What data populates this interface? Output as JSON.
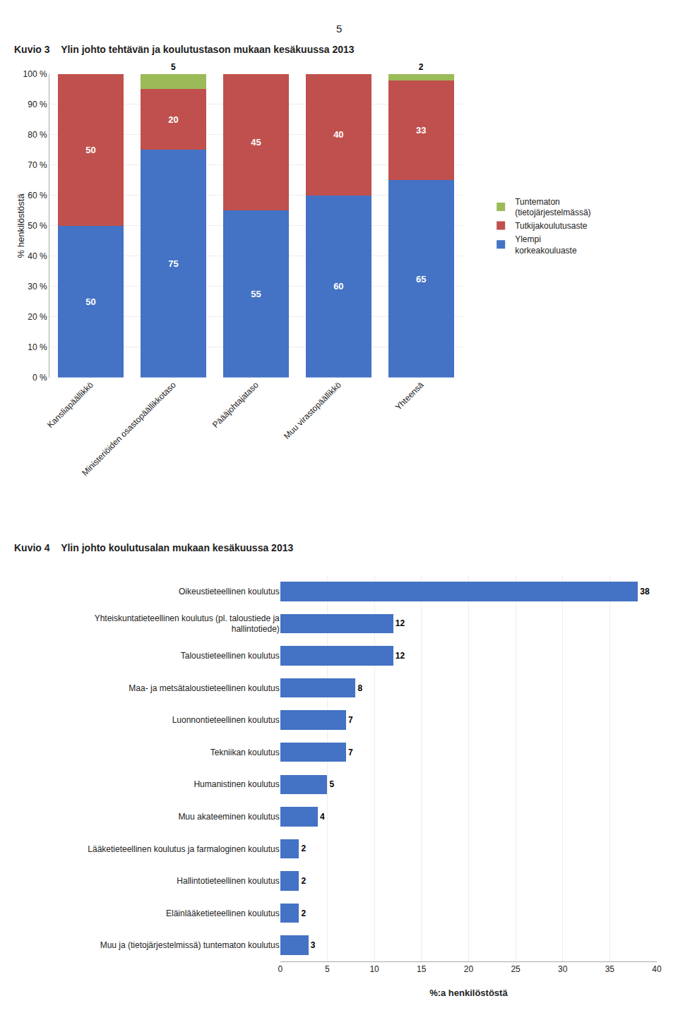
{
  "chart_data": [
    {
      "type": "bar",
      "title": "Kuvio 3",
      "subtitle": "Ylin johto tehtävän ja koulutustason mukaan kesäkuussa 2013",
      "annotations": [
        "5"
      ],
      "categories": [
        "Kansliapäällikkö",
        "Ministeriöiden osastopäällikkotaso",
        "Päääjohtajataso",
        "Muu virastopäällikkö",
        "Yhteensä"
      ],
      "series": [
        {
          "name": "Ylempi\nkorkeakouluaste",
          "color": "#4472C4",
          "values": [
            50,
            75,
            55,
            60,
            65
          ]
        },
        {
          "name": "Tutkijakoulutusaste",
          "color": "#C0504D",
          "values": [
            50,
            20,
            45,
            40,
            33
          ]
        },
        {
          "name": "Tuntematon\n(tietojärjestelmässä)",
          "color": "#9BBB59",
          "values": [
            0,
            5,
            0,
            0,
            2
          ]
        }
      ],
      "stacked": true,
      "ylabel": "% henkilöstöstä",
      "ylim": [
        0,
        100
      ],
      "yticks": [
        {
          "value": 0,
          "label": "0 %"
        },
        {
          "value": 10,
          "label": "10 %"
        },
        {
          "value": 20,
          "label": "20 %"
        },
        {
          "value": 30,
          "label": "30 %"
        },
        {
          "value": 40,
          "label": "40 %"
        },
        {
          "value": 50,
          "label": "50 %"
        },
        {
          "value": 60,
          "label": "60 %"
        },
        {
          "value": 70,
          "label": "70 %"
        },
        {
          "value": 80,
          "label": "80 %"
        },
        {
          "value": 90,
          "label": "90 %"
        },
        {
          "value": 100,
          "label": "100 %"
        }
      ],
      "grid": true,
      "legend": "right",
      "data_labels": true
    },
    {
      "type": "bar",
      "orientation": "horizontal",
      "title": "Kuvio 4",
      "subtitle": "Ylin johto koulutusalan mukaan kesäkuussa 2013",
      "categories": [
        "Oikeustieteellinen koulutus",
        "Yhteiskuntatieteellinen koulutus (pl. taloustiede ja\nhallintotiede)",
        "Taloustieteellinen koulutus",
        "Maa- ja metsätaloustieteellinen koulutus",
        "Luonnontieteellinen koulutus",
        "Tekniikan koulutus",
        "Humanistinen koulutus",
        "Muu akateeminen koulutus",
        "Lääketieteellinen koulutus ja farmaloginen koulutus",
        "Hallintotieteellinen koulutus",
        "Eläinlääketieteellinen koulutus",
        "Muu ja (tietojärjestelmissä) tuntematon koulutus"
      ],
      "values": [
        38,
        12,
        12,
        8,
        7,
        7,
        5,
        4,
        2,
        2,
        2,
        3
      ],
      "color": "#4472C4",
      "xlabel": "%:a henkilöstöstä",
      "xlim": [
        0,
        40
      ],
      "xticks": [
        0,
        5,
        10,
        15,
        20,
        25,
        30,
        35,
        40
      ],
      "grid": true,
      "data_labels": true
    }
  ]
}
